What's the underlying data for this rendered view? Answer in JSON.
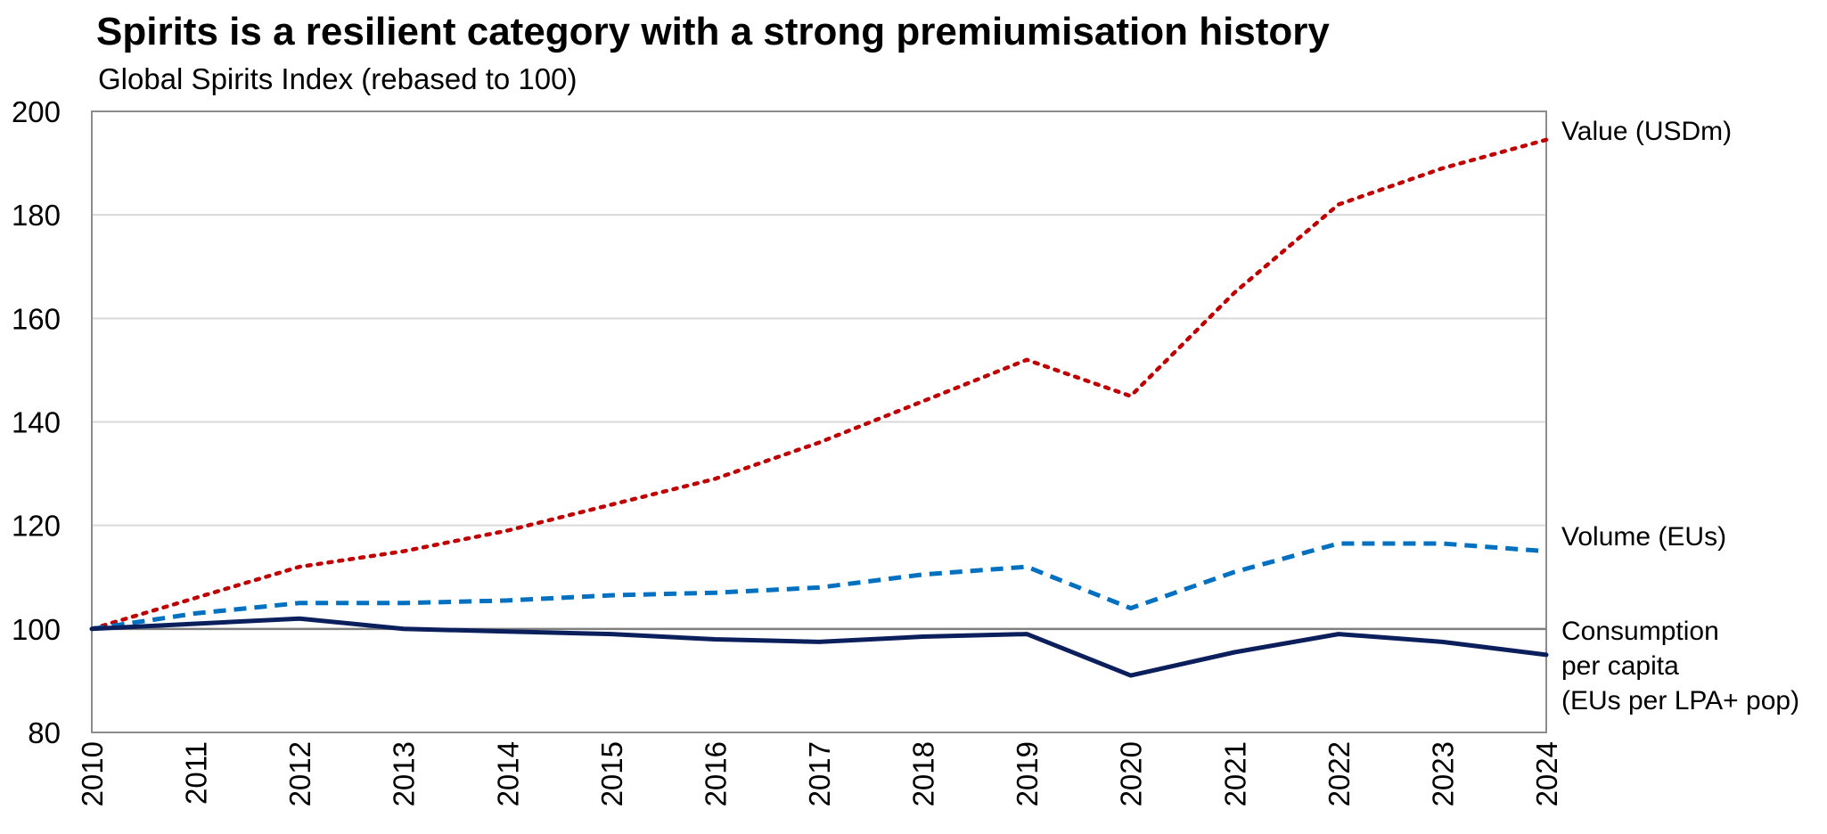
{
  "chart_data": {
    "type": "line",
    "title": "Spirits is a resilient category with a strong premiumisation history",
    "subtitle": "Global Spirits Index (rebased to 100)",
    "xlabel": "",
    "ylabel": "",
    "categories": [
      "2010",
      "2011",
      "2012",
      "2013",
      "2014",
      "2015",
      "2016",
      "2017",
      "2018",
      "2019",
      "2020",
      "2021",
      "2022",
      "2023",
      "2024"
    ],
    "ylim": [
      80,
      200
    ],
    "yticks": [
      80,
      100,
      120,
      140,
      160,
      180,
      200
    ],
    "reference_line": 100,
    "grid": true,
    "legend": "direct labels at right end of each line",
    "series": [
      {
        "name": "Value (USDm)",
        "label_lines": [
          "Value (USDm)"
        ],
        "color": "#C00000",
        "style": "dotted",
        "values": [
          100,
          106,
          112,
          115,
          119,
          124,
          129,
          136,
          144,
          152,
          145,
          165,
          182,
          189,
          194.5
        ]
      },
      {
        "name": "Volume (EUs)",
        "label_lines": [
          "Volume (EUs)"
        ],
        "color": "#0070C0",
        "style": "dashed",
        "values": [
          100,
          103,
          105,
          105,
          105.5,
          106.5,
          107,
          108,
          110.5,
          112,
          104,
          111,
          116.5,
          116.5,
          115
        ]
      },
      {
        "name": "Consumption per capita (EUs per LPA+ pop)",
        "label_lines": [
          "Consumption",
          "per capita",
          "(EUs per LPA+ pop)"
        ],
        "color": "#0B1F5C",
        "style": "solid",
        "values": [
          100,
          101,
          102,
          100,
          99.5,
          99,
          98,
          97.5,
          98.5,
          99,
          91,
          95.5,
          99,
          97.5,
          95
        ]
      }
    ]
  }
}
